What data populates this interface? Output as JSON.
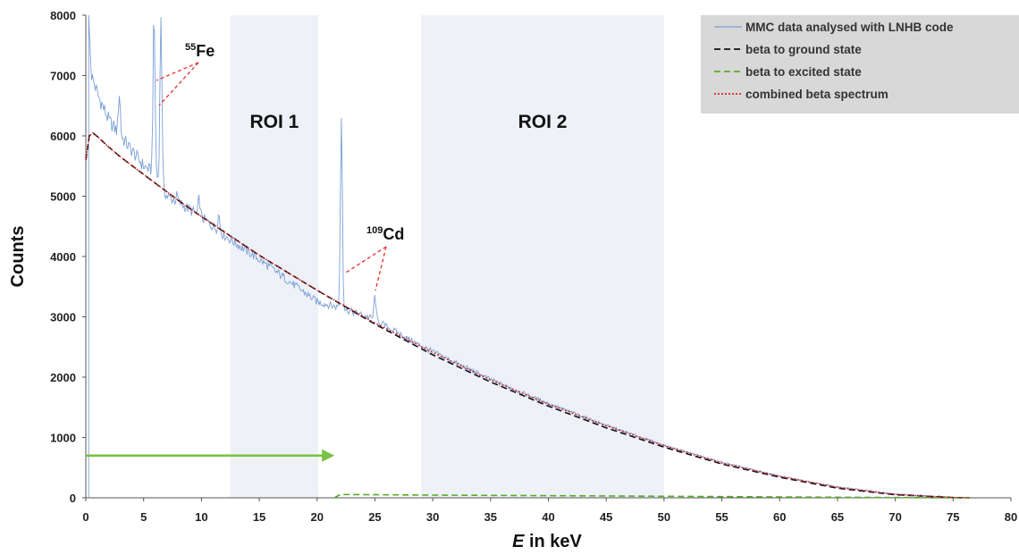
{
  "chart_data": {
    "type": "line",
    "xlabel": "E in keV",
    "xlabel_italic": "E",
    "xlabel_rest": " in keV",
    "ylabel": "Counts",
    "xlim": [
      0,
      80
    ],
    "ylim": [
      0,
      8000
    ],
    "x_ticks": [
      "0",
      "5",
      "10",
      "15",
      "20",
      "25",
      "30",
      "35",
      "40",
      "45",
      "50",
      "55",
      "60",
      "65",
      "70",
      "75",
      "80"
    ],
    "y_ticks": [
      "0",
      "1000",
      "2000",
      "3000",
      "4000",
      "5000",
      "6000",
      "7000",
      "8000"
    ],
    "grid": false,
    "legend_position": "top-right",
    "regions": [
      {
        "label": "ROI 1",
        "x_start": 12.5,
        "x_end": 20.1
      },
      {
        "label": "ROI 2",
        "x_start": 29.0,
        "x_end": 50.0
      }
    ],
    "annotations": [
      {
        "mass_number": "55",
        "element": "Fe",
        "peaks_x": [
          5.9,
          6.5
        ]
      },
      {
        "mass_number": "109",
        "element": "Cd",
        "peaks_x": [
          22.1,
          25.0
        ]
      }
    ],
    "arrow": {
      "y": 700,
      "x_from": 0,
      "x_to": 21.5,
      "color": "#7ac143"
    },
    "series": [
      {
        "name": "MMC data analysed with LNHB code",
        "color": "#7b9fd6",
        "style": "solid",
        "x": [
          0.5,
          1,
          2,
          3,
          4,
          5,
          6,
          7,
          8,
          10,
          12,
          15,
          17.5,
          20,
          22,
          24,
          25,
          26,
          28,
          30,
          35,
          40,
          45,
          50,
          55,
          60,
          65,
          70,
          75,
          76.4
        ],
        "y": [
          7000,
          6700,
          6250,
          6000,
          5750,
          5500,
          5380,
          5000,
          4900,
          4650,
          4350,
          3950,
          3600,
          3250,
          3150,
          3020,
          2960,
          2840,
          2620,
          2420,
          1960,
          1560,
          1200,
          870,
          590,
          360,
          180,
          60,
          10,
          0
        ],
        "peaks": [
          {
            "x": 0.25,
            "y": 8000
          },
          {
            "x": 2.9,
            "y": 6700
          },
          {
            "x": 5.9,
            "y": 8000
          },
          {
            "x": 6.5,
            "y": 8000
          },
          {
            "x": 7.9,
            "y": 5000
          },
          {
            "x": 9.8,
            "y": 4950
          },
          {
            "x": 11.5,
            "y": 4700
          },
          {
            "x": 22.1,
            "y": 6300
          },
          {
            "x": 25.0,
            "y": 3350
          }
        ]
      },
      {
        "name": "beta to ground state",
        "color": "#111111",
        "style": "dashed",
        "x": [
          0,
          0.3,
          0.6,
          1,
          2,
          3,
          5,
          8,
          10,
          15,
          20,
          25,
          30,
          35,
          40,
          45,
          50,
          55,
          60,
          65,
          70,
          75,
          76.4
        ],
        "y": [
          5600,
          6000,
          6050,
          5990,
          5810,
          5650,
          5360,
          4930,
          4660,
          4020,
          3440,
          2880,
          2370,
          1920,
          1520,
          1160,
          840,
          560,
          340,
          160,
          50,
          5,
          0
        ]
      },
      {
        "name": "beta to excited state",
        "color": "#5aaa2a",
        "style": "dashed",
        "x": [
          21.5,
          22,
          30,
          40,
          50,
          60,
          70,
          76.4
        ],
        "y": [
          0,
          55,
          45,
          35,
          25,
          15,
          5,
          0
        ]
      },
      {
        "name": "combined beta spectrum",
        "color": "#d62728",
        "style": "dotted",
        "x": [
          0,
          0.3,
          0.6,
          1,
          2,
          3,
          5,
          8,
          10,
          15,
          20,
          25,
          30,
          35,
          40,
          45,
          50,
          55,
          60,
          65,
          70,
          75,
          76.4
        ],
        "y": [
          5600,
          6000,
          6050,
          5990,
          5810,
          5650,
          5360,
          4930,
          4660,
          4020,
          3440,
          2900,
          2410,
          1955,
          1555,
          1195,
          865,
          575,
          355,
          175,
          55,
          5,
          0
        ]
      }
    ]
  }
}
